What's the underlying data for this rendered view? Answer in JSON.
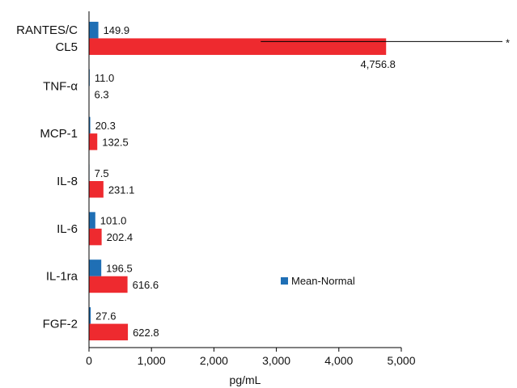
{
  "chart_data": {
    "type": "bar",
    "orientation": "horizontal",
    "title": "",
    "xlabel": "pg/mL",
    "ylabel": "",
    "xlim": [
      0,
      5000
    ],
    "grid": false,
    "categories": [
      {
        "lines": [
          "RANTES/C",
          "CL5"
        ]
      },
      {
        "lines": [
          "TNF-α"
        ]
      },
      {
        "lines": [
          "MCP-1"
        ]
      },
      {
        "lines": [
          "IL-8"
        ]
      },
      {
        "lines": [
          "IL-6"
        ]
      },
      {
        "lines": [
          "IL-1ra"
        ]
      },
      {
        "lines": [
          "FGF-2"
        ]
      }
    ],
    "x_ticks": [
      {
        "value": 0,
        "label": "0"
      },
      {
        "value": 1000,
        "label": "1,000"
      },
      {
        "value": 2000,
        "label": "2,000"
      },
      {
        "value": 3000,
        "label": "3,000"
      },
      {
        "value": 4000,
        "label": "4,000"
      },
      {
        "value": 5000,
        "label": "5,000"
      }
    ],
    "series": [
      {
        "name": "Mean-Normal",
        "color": "#1f6fb5",
        "values": [
          149.9,
          11.0,
          20.3,
          7.5,
          101.0,
          196.5,
          27.6
        ],
        "labels": [
          "149.9",
          "11.0",
          "20.3",
          "7.5",
          "101.0",
          "196.5",
          "27.6"
        ]
      },
      {
        "color": "#ee2a2f",
        "values": [
          4756.8,
          6.3,
          132.5,
          231.1,
          202.4,
          616.6,
          622.8
        ],
        "labels": [
          "4,756.8",
          "6.3",
          "132.5",
          "231.1",
          "202.4",
          "616.6",
          "622.8"
        ]
      }
    ],
    "legend": {
      "placement": "center-right",
      "entries": [
        "Mean-Normal"
      ]
    },
    "annotations": [
      {
        "text": "*",
        "category_index": 0,
        "x_from": 2750
      }
    ]
  }
}
